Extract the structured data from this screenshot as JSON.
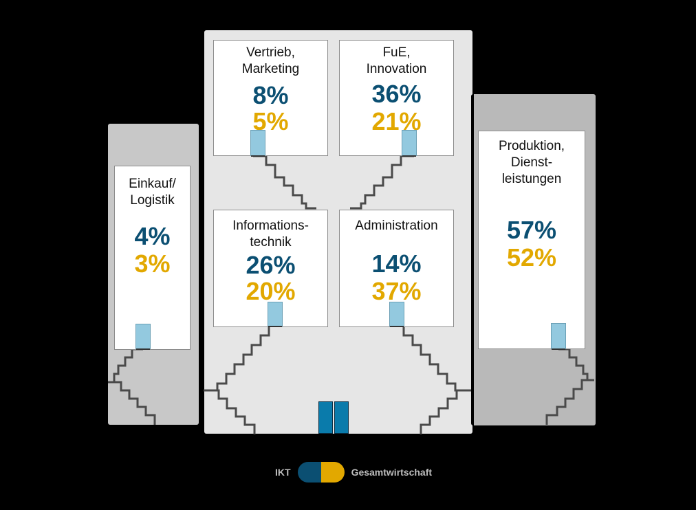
{
  "rooms": {
    "einkauf": {
      "label": "Einkauf/\nLogistik",
      "ikt": "4%",
      "gesamt": "3%"
    },
    "vertrieb": {
      "label": "Vertrieb,\nMarketing",
      "ikt": "8%",
      "gesamt": "5%"
    },
    "fue": {
      "label": "FuE,\nInnovation",
      "ikt": "36%",
      "gesamt": "21%"
    },
    "it": {
      "label": "Informations-\ntechnik",
      "ikt": "26%",
      "gesamt": "20%"
    },
    "admin": {
      "label": "Administration",
      "ikt": "14%",
      "gesamt": "37%"
    },
    "produktion": {
      "label": "Produktion,\nDienst-\nleistungen",
      "ikt": "57%",
      "gesamt": "52%"
    }
  },
  "legend": {
    "ikt_label": "IKT",
    "gesamt_label": "Gesamtwirtschaft"
  },
  "colors": {
    "ikt": "#0b4f72",
    "gesamt": "#e2a800",
    "door": "#93c9df",
    "main_door": "#0a7bab"
  }
}
